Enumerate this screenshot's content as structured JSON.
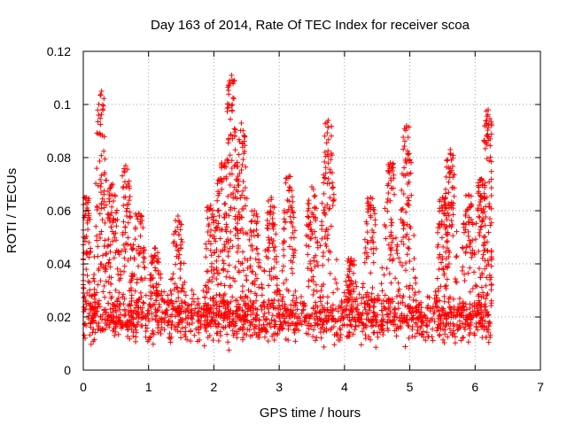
{
  "chart_data": {
    "type": "scatter",
    "title": "Day 163 of 2014, Rate Of TEC Index for receiver scoa",
    "xlabel": "GPS time / hours",
    "ylabel": "ROTI / TECUs",
    "xlim": [
      0,
      7
    ],
    "ylim": [
      0,
      0.12
    ],
    "xticks": [
      "0",
      "1",
      "2",
      "3",
      "4",
      "5",
      "6",
      "7"
    ],
    "yticks": [
      "0",
      "0.02",
      "0.04",
      "0.06",
      "0.08",
      "0.1",
      "0.12"
    ],
    "grid": true,
    "marker": "plus",
    "series_color": "#ff0000",
    "x_data_range": [
      0,
      6.25
    ],
    "peaks": [
      {
        "x": 0.05,
        "y": 0.065
      },
      {
        "x": 0.28,
        "y": 0.105
      },
      {
        "x": 0.45,
        "y": 0.07
      },
      {
        "x": 0.65,
        "y": 0.077
      },
      {
        "x": 0.85,
        "y": 0.059
      },
      {
        "x": 1.1,
        "y": 0.046
      },
      {
        "x": 1.45,
        "y": 0.058
      },
      {
        "x": 1.95,
        "y": 0.062
      },
      {
        "x": 2.12,
        "y": 0.078
      },
      {
        "x": 2.27,
        "y": 0.111
      },
      {
        "x": 2.42,
        "y": 0.093
      },
      {
        "x": 2.62,
        "y": 0.06
      },
      {
        "x": 2.88,
        "y": 0.065
      },
      {
        "x": 3.15,
        "y": 0.073
      },
      {
        "x": 3.5,
        "y": 0.069
      },
      {
        "x": 3.75,
        "y": 0.094
      },
      {
        "x": 4.1,
        "y": 0.042
      },
      {
        "x": 4.4,
        "y": 0.065
      },
      {
        "x": 4.7,
        "y": 0.078
      },
      {
        "x": 4.95,
        "y": 0.092
      },
      {
        "x": 5.5,
        "y": 0.065
      },
      {
        "x": 5.62,
        "y": 0.083
      },
      {
        "x": 5.9,
        "y": 0.066
      },
      {
        "x": 6.1,
        "y": 0.072
      },
      {
        "x": 6.2,
        "y": 0.098
      }
    ],
    "baseline_band": [
      0.005,
      0.03
    ]
  }
}
